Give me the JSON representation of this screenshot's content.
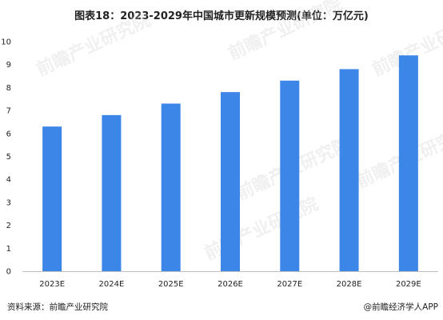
{
  "chart_data": {
    "type": "bar",
    "title": "图表18：2023-2029年中国城市更新规模预测(单位：万亿元)",
    "categories": [
      "2023E",
      "2024E",
      "2025E",
      "2026E",
      "2027E",
      "2028E",
      "2029E"
    ],
    "values": [
      6.3,
      6.8,
      7.3,
      7.8,
      8.3,
      8.8,
      9.4
    ],
    "ylim": [
      0,
      10
    ],
    "yticks": [
      0,
      1,
      2,
      3,
      4,
      5,
      6,
      7,
      8,
      9,
      10
    ],
    "grid": false,
    "bar_color": "#3b86e6",
    "xlabel": "",
    "ylabel": ""
  },
  "footer": {
    "source": "资料来源：前瞻产业研究院",
    "brand": "@前瞻经济学人APP"
  },
  "watermark": {
    "text": "前瞻产业研究院"
  }
}
